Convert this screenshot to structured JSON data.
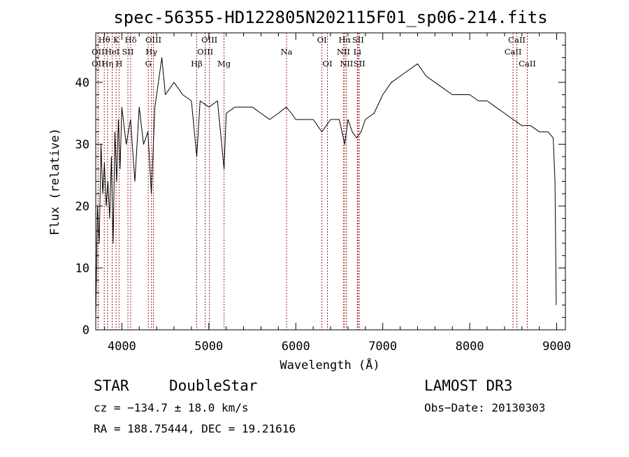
{
  "chart_data": {
    "type": "line",
    "title": "spec-56355-HD122805N202115F01_sp06-214.fits",
    "xlabel": "Wavelength (Å)",
    "ylabel": "Flux (relative)",
    "xlim": [
      3700,
      9100
    ],
    "ylim": [
      0,
      48
    ],
    "xticks": [
      4000,
      5000,
      6000,
      7000,
      8000,
      9000
    ],
    "yticks": [
      0,
      10,
      20,
      30,
      40
    ],
    "x_minor_step": 200,
    "y_minor_step": 2,
    "grid": false,
    "series": [
      {
        "x": [
          3700,
          3720,
          3740,
          3760,
          3780,
          3800,
          3820,
          3840,
          3860,
          3880,
          3900,
          3920,
          3940,
          3960,
          3980,
          4000,
          4050,
          4100,
          4150,
          4200,
          4250,
          4300,
          4340,
          4380,
          4420,
          4460,
          4500,
          4600,
          4700,
          4800,
          4861,
          4900,
          5000,
          5100,
          5175,
          5200,
          5300,
          5400,
          5500,
          5600,
          5700,
          5800,
          5890,
          5950,
          6000,
          6100,
          6200,
          6300,
          6400,
          6500,
          6563,
          6600,
          6650,
          6700,
          6750,
          6800,
          6900,
          7000,
          7100,
          7200,
          7300,
          7400,
          7500,
          7600,
          7700,
          7800,
          7900,
          8000,
          8100,
          8200,
          8300,
          8400,
          8500,
          8600,
          8700,
          8800,
          8900,
          8960,
          8980,
          8995
        ],
        "y": [
          2,
          20,
          14,
          30,
          22,
          27,
          20,
          24,
          18,
          28,
          14,
          32,
          24,
          34,
          26,
          36,
          30,
          34,
          24,
          36,
          30,
          32,
          22,
          36,
          40,
          44,
          38,
          40,
          38,
          37,
          28,
          37,
          36,
          37,
          26,
          35,
          36,
          36,
          36,
          35,
          34,
          35,
          36,
          35,
          34,
          34,
          34,
          32,
          34,
          34,
          30,
          34,
          32,
          31,
          32,
          34,
          35,
          38,
          40,
          41,
          42,
          43,
          41,
          40,
          39,
          38,
          38,
          38,
          37,
          37,
          36,
          35,
          34,
          33,
          33,
          32,
          32,
          31,
          24,
          4
        ]
      }
    ],
    "lines": [
      {
        "label": "OII",
        "x": 3727,
        "row": 2
      },
      {
        "label": "OII",
        "x": 3727,
        "row": 3
      },
      {
        "label": "Hθ",
        "x": 3798,
        "row": 1
      },
      {
        "label": "Hη",
        "x": 3835,
        "row": 3
      },
      {
        "label": "HeI",
        "x": 3889,
        "row": 2
      },
      {
        "label": "K",
        "x": 3934,
        "row": 1
      },
      {
        "label": "H",
        "x": 3968,
        "row": 3
      },
      {
        "label": "SII",
        "x": 4070,
        "row": 2
      },
      {
        "label": "Hδ",
        "x": 4102,
        "row": 1
      },
      {
        "label": "G",
        "x": 4304,
        "row": 3
      },
      {
        "label": "Hγ",
        "x": 4340,
        "row": 2
      },
      {
        "label": "OIII",
        "x": 4363,
        "row": 1
      },
      {
        "label": "Hβ",
        "x": 4861,
        "row": 3
      },
      {
        "label": "OIII",
        "x": 4959,
        "row": 2
      },
      {
        "label": "OIII",
        "x": 5007,
        "row": 1
      },
      {
        "label": "Mg",
        "x": 5175,
        "row": 3
      },
      {
        "label": "Na",
        "x": 5894,
        "row": 2
      },
      {
        "label": "OI",
        "x": 6300,
        "row": 1
      },
      {
        "label": "OI",
        "x": 6364,
        "row": 3
      },
      {
        "label": "NII",
        "x": 6548,
        "row": 2
      },
      {
        "label": "Hα",
        "x": 6563,
        "row": 1
      },
      {
        "label": "NII",
        "x": 6583,
        "row": 3
      },
      {
        "label": "Li",
        "x": 6708,
        "row": 2
      },
      {
        "label": "SII",
        "x": 6716,
        "row": 1
      },
      {
        "label": "SII",
        "x": 6731,
        "row": 3
      },
      {
        "label": "CaII",
        "x": 8498,
        "row": 2
      },
      {
        "label": "CaII",
        "x": 8542,
        "row": 1
      },
      {
        "label": "CaII",
        "x": 8662,
        "row": 3
      }
    ]
  },
  "info": {
    "object_class": "STAR",
    "subclass": "DoubleStar",
    "survey": "LAMOST DR3",
    "cz": "cz = −134.7 ± 18.0 km/s",
    "obs_date": "Obs−Date: 20130303",
    "coords": "RA = 188.75444, DEC =  19.21616"
  },
  "colors": {
    "spectrum": "#000000",
    "line_markers": "#a0201e"
  }
}
